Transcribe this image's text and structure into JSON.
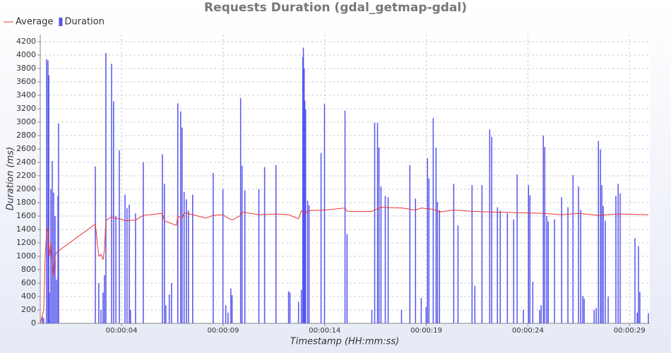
{
  "chart_data": {
    "type": "bar-line",
    "title": "Requests Duration (gdal_getmap-gdal)",
    "x_label": "Timestamp (HH:mm:ss)",
    "y_label": "Duration (ms)",
    "xlim": [
      0,
      30
    ],
    "ylim": [
      0,
      4200
    ],
    "xticks": [
      {
        "value": 4,
        "label": "00:00:04"
      },
      {
        "value": 9,
        "label": "00:00:09"
      },
      {
        "value": 14,
        "label": "00:00:14"
      },
      {
        "value": 19,
        "label": "00:00:19"
      },
      {
        "value": 24,
        "label": "00:00:24"
      },
      {
        "value": 29,
        "label": "00:00:29"
      }
    ],
    "yticks": [
      0,
      200,
      400,
      600,
      800,
      1000,
      1200,
      1400,
      1600,
      1800,
      2000,
      2200,
      2400,
      2600,
      2800,
      3000,
      3200,
      3400,
      3600,
      3800,
      4000,
      4200
    ],
    "grid": true,
    "legend": "top-left",
    "series": [
      {
        "name": "Average",
        "type": "line",
        "color": "#ee3333",
        "x": [
          0.0,
          0.17,
          0.24,
          0.31,
          0.38,
          0.45,
          0.52,
          0.59,
          0.66,
          0.73,
          0.8,
          2.71,
          2.88,
          2.99,
          3.09,
          3.16,
          3.23,
          3.51,
          3.72,
          3.89,
          4.17,
          4.69,
          5.07,
          6.01,
          6.11,
          6.35,
          6.7,
          6.77,
          6.98,
          7.08,
          7.5,
          8.16,
          8.51,
          8.99,
          9.24,
          9.44,
          9.86,
          9.93,
          10.76,
          11.6,
          12.22,
          12.71,
          12.85,
          13.06,
          13.16,
          13.99,
          15.0,
          15.1,
          16.32,
          16.77,
          17.78,
          18.47,
          18.75,
          19.34,
          19.65,
          20.35,
          21.25,
          22.12,
          23.47,
          24.76,
          25.66,
          26.49,
          27.47,
          28.44,
          29.93
        ],
        "values": [
          0,
          200,
          1000,
          1350,
          1430,
          1000,
          1200,
          900,
          700,
          1000,
          1060,
          1480,
          1000,
          1030,
          950,
          1100,
          1530,
          1590,
          1560,
          1560,
          1530,
          1540,
          1610,
          1640,
          1530,
          1500,
          1460,
          1600,
          1560,
          1650,
          1620,
          1570,
          1610,
          1620,
          1570,
          1540,
          1610,
          1660,
          1620,
          1630,
          1620,
          1560,
          1680,
          1630,
          1680,
          1690,
          1720,
          1670,
          1670,
          1730,
          1720,
          1690,
          1720,
          1700,
          1660,
          1690,
          1670,
          1660,
          1650,
          1640,
          1620,
          1640,
          1610,
          1630,
          1620
        ]
      },
      {
        "name": "Duration",
        "type": "bar",
        "color": "#5555ee",
        "x": [
          0.1,
          0.17,
          0.31,
          0.38,
          0.42,
          0.45,
          0.52,
          0.59,
          0.66,
          0.73,
          0.8,
          0.87,
          0.9,
          2.71,
          2.88,
          2.99,
          3.09,
          3.16,
          3.23,
          3.51,
          3.61,
          3.72,
          3.89,
          4.17,
          4.27,
          4.38,
          4.44,
          4.69,
          5.07,
          6.01,
          6.11,
          6.18,
          6.35,
          6.46,
          6.77,
          6.91,
          6.98,
          7.08,
          7.19,
          7.29,
          7.5,
          8.51,
          8.99,
          9.13,
          9.24,
          9.38,
          9.44,
          9.86,
          9.93,
          10.07,
          10.76,
          11.04,
          11.6,
          12.22,
          12.29,
          12.71,
          12.85,
          12.92,
          12.95,
          12.99,
          13.02,
          13.06,
          13.16,
          13.23,
          13.82,
          13.99,
          15.0,
          15.1,
          16.32,
          16.46,
          16.6,
          16.67,
          16.77,
          16.98,
          17.12,
          17.78,
          18.19,
          18.47,
          18.75,
          18.99,
          19.06,
          19.13,
          19.34,
          19.48,
          19.55,
          19.65,
          20.35,
          20.56,
          21.25,
          21.39,
          21.74,
          22.12,
          22.22,
          22.5,
          22.64,
          22.99,
          23.3,
          23.47,
          23.78,
          24.03,
          24.1,
          24.24,
          24.58,
          24.65,
          24.76,
          24.83,
          24.93,
          25.0,
          25.31,
          25.66,
          25.97,
          26.22,
          26.49,
          26.6,
          26.7,
          26.77,
          27.26,
          27.36,
          27.47,
          27.57,
          27.64,
          27.71,
          27.81,
          27.95,
          28.33,
          28.44,
          28.54,
          29.27,
          29.38,
          29.44,
          29.51,
          29.93
        ],
        "values": [
          100,
          80,
          3940,
          3920,
          3700,
          460,
          2000,
          2420,
          1950,
          1600,
          650,
          1900,
          2980,
          2340,
          600,
          200,
          460,
          720,
          4030,
          3870,
          3310,
          1600,
          2580,
          1920,
          1720,
          1770,
          200,
          1640,
          2400,
          2520,
          2080,
          270,
          430,
          600,
          3280,
          3160,
          2920,
          1960,
          1850,
          1680,
          1920,
          2240,
          2000,
          270,
          160,
          520,
          420,
          3360,
          2350,
          1980,
          2000,
          2330,
          2360,
          480,
          460,
          320,
          500,
          3970,
          4110,
          3800,
          3320,
          3190,
          1830,
          1760,
          2540,
          3270,
          3170,
          1330,
          200,
          2990,
          2990,
          2620,
          2040,
          1900,
          1880,
          200,
          2360,
          1860,
          380,
          240,
          2460,
          2160,
          3060,
          2620,
          1810,
          1690,
          2080,
          1460,
          2060,
          560,
          2060,
          2890,
          2780,
          1730,
          1680,
          1640,
          1550,
          2220,
          200,
          2060,
          1910,
          620,
          200,
          270,
          2800,
          2630,
          1600,
          1520,
          1550,
          1880,
          1730,
          2210,
          2040,
          1690,
          410,
          370,
          200,
          230,
          2720,
          2590,
          2060,
          1750,
          1530,
          400,
          1900,
          2080,
          1940,
          1270,
          160,
          1150,
          470,
          150
        ]
      }
    ]
  }
}
